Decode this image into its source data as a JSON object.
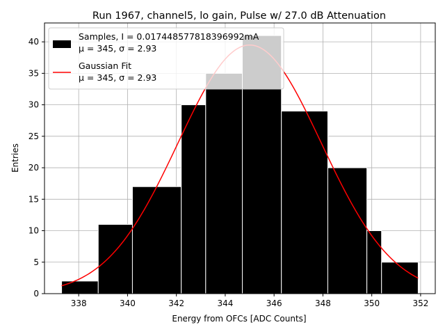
{
  "chart_data": {
    "type": "bar",
    "title": "Run 1967, channel5, lo gain, Pulse w/ 27.0 dB Attenuation",
    "xlabel": "Energy from OFCs [ADC Counts]",
    "ylabel": "Entries",
    "xlim": [
      336.6,
      352.6
    ],
    "ylim": [
      0,
      43
    ],
    "xticks": [
      338,
      340,
      342,
      344,
      346,
      348,
      350,
      352
    ],
    "xtick_labels": [
      "338",
      "340",
      "342",
      "344",
      "346",
      "348",
      "350",
      "352"
    ],
    "yticks": [
      0,
      5,
      10,
      15,
      20,
      25,
      30,
      35,
      40
    ],
    "ytick_labels": [
      "0",
      "5",
      "10",
      "15",
      "20",
      "25",
      "30",
      "35",
      "40"
    ],
    "grid": true,
    "legend_placement": "upper-left",
    "bins": [
      {
        "left": 337.3,
        "right": 338.8,
        "value": 2
      },
      {
        "left": 338.8,
        "right": 340.2,
        "value": 11
      },
      {
        "left": 340.2,
        "right": 342.2,
        "value": 17
      },
      {
        "left": 342.2,
        "right": 343.2,
        "value": 30
      },
      {
        "left": 343.2,
        "right": 344.7,
        "value": 35
      },
      {
        "left": 344.7,
        "right": 346.3,
        "value": 41
      },
      {
        "left": 346.3,
        "right": 348.2,
        "value": 29
      },
      {
        "left": 348.2,
        "right": 349.8,
        "value": 20
      },
      {
        "left": 349.8,
        "right": 350.4,
        "value": 10
      },
      {
        "left": 350.4,
        "right": 351.9,
        "value": 5
      }
    ],
    "fit": {
      "type": "gaussian",
      "mu": 345.0,
      "sigma": 2.93,
      "amplitude": 39.5,
      "x_range": [
        337.3,
        351.9
      ]
    },
    "series": [
      {
        "name": "Samples, I = 0.017448577818396992mA",
        "stats": "μ = 345, σ = 2.93",
        "color": "#000000"
      },
      {
        "name": "Gaussian Fit",
        "stats": "μ = 345, σ = 2.93",
        "color": "#ff0000"
      }
    ]
  }
}
